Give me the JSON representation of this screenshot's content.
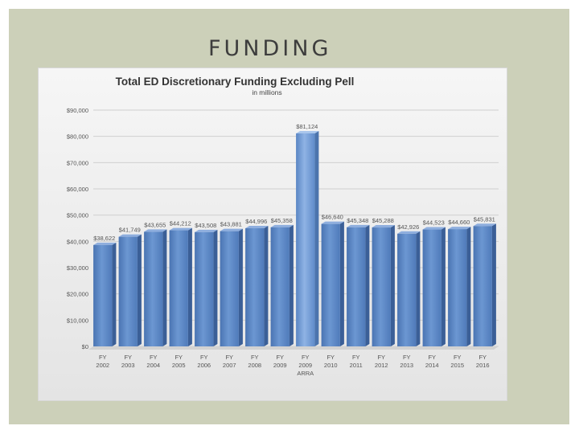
{
  "slide": {
    "title": "FUNDING"
  },
  "chart_data": {
    "type": "bar",
    "title": "Total ED Discretionary Funding Excluding Pell",
    "subtitle": "in millions",
    "categories": [
      [
        "FY",
        "2002"
      ],
      [
        "FY",
        "2003"
      ],
      [
        "FY",
        "2004"
      ],
      [
        "FY",
        "2005"
      ],
      [
        "FY",
        "2006"
      ],
      [
        "FY",
        "2007"
      ],
      [
        "FY",
        "2008"
      ],
      [
        "FY",
        "2009"
      ],
      [
        "FY",
        "2009",
        "ARRA"
      ],
      [
        "FY",
        "2010"
      ],
      [
        "FY",
        "2011"
      ],
      [
        "FY",
        "2012"
      ],
      [
        "FY",
        "2013"
      ],
      [
        "FY",
        "2014"
      ],
      [
        "FY",
        "2015"
      ],
      [
        "FY",
        "2016"
      ]
    ],
    "values": [
      38622,
      41749,
      43655,
      44212,
      43508,
      43881,
      44996,
      45358,
      81124,
      46640,
      45348,
      45288,
      42926,
      44523,
      44660,
      45831
    ],
    "data_labels": [
      "$38,622",
      "$41,749",
      "$43,655",
      "$44,212",
      "$43,508",
      "$43,881",
      "$44,996",
      "$45,358",
      "$81,124",
      "$46,640",
      "$45,348",
      "$45,288",
      "$42,926",
      "$44,523",
      "$44,660",
      "$45,831"
    ],
    "ylim": [
      0,
      90000
    ],
    "yticks": [
      "$0",
      "$10,000",
      "$20,000",
      "$30,000",
      "$40,000",
      "$50,000",
      "$60,000",
      "$70,000",
      "$80,000",
      "$90,000"
    ],
    "grid": true,
    "bar_color": "#5b87c5",
    "highlight_color": "#6e9ad6"
  }
}
